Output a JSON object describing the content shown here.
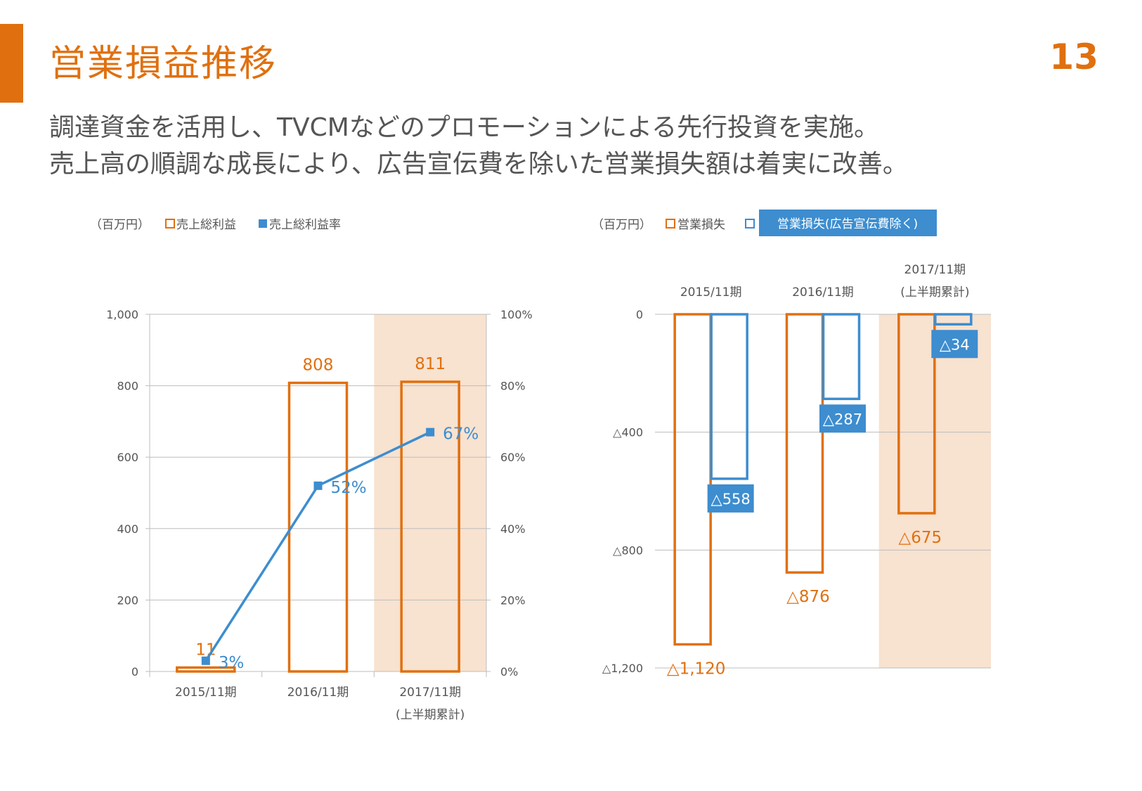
{
  "header": {
    "title": "営業損益推移",
    "page_number": "13",
    "subtitle_lines": [
      "調達資金を活用し、TVCMなどのプロモーションによる先行投資を実施。",
      "売上高の順調な成長により、広告宣伝費を除いた営業損失額は着実に改善。"
    ]
  },
  "colors": {
    "accent": "#e0700f",
    "blue": "#3d8dcf",
    "highlight": "#f8e2d0",
    "grid": "#bdbdbd",
    "text": "#555555"
  },
  "chart_data": [
    {
      "type": "bar",
      "unit_label": "（百万円）",
      "legend": [
        {
          "marker": "□",
          "label": "売上総利益"
        },
        {
          "marker": "■",
          "label": "売上総利益率"
        }
      ],
      "categories": [
        "2015/11期",
        "2016/11期",
        "2017/11期"
      ],
      "category_sublabels": [
        "",
        "",
        "(上半期累計)"
      ],
      "highlighted_category_index": 2,
      "series": [
        {
          "name": "売上総利益",
          "type": "bar",
          "axis": "left",
          "values": [
            11,
            808,
            811
          ],
          "labels": [
            "11",
            "808",
            "811"
          ]
        },
        {
          "name": "売上総利益率",
          "type": "line",
          "axis": "right",
          "values": [
            3,
            52,
            67
          ],
          "labels": [
            "3%",
            "52%",
            "67%"
          ]
        }
      ],
      "y_left": {
        "min": 0,
        "max": 1000,
        "ticks": [
          0,
          200,
          400,
          600,
          800,
          1000
        ],
        "tick_labels": [
          "0",
          "200",
          "400",
          "600",
          "800",
          "1,000"
        ]
      },
      "y_right": {
        "min": 0,
        "max": 100,
        "ticks": [
          0,
          20,
          40,
          60,
          80,
          100
        ],
        "tick_labels": [
          "0%",
          "20%",
          "40%",
          "60%",
          "80%",
          "100%"
        ]
      },
      "grid": true
    },
    {
      "type": "bar",
      "unit_label": "（百万円）",
      "legend": [
        {
          "marker": "□",
          "label": "営業損失"
        },
        {
          "marker": "□",
          "label": "営業損失(広告宣伝費除く)"
        }
      ],
      "categories": [
        "2015/11期",
        "2016/11期",
        "2017/11期"
      ],
      "category_sublabels": [
        "",
        "",
        "(上半期累計)"
      ],
      "highlighted_category_index": 2,
      "series": [
        {
          "name": "営業損失",
          "values": [
            -1120,
            -876,
            -675
          ],
          "labels": [
            "△1,120",
            "△876",
            "△675"
          ]
        },
        {
          "name": "営業損失(広告宣伝費除く)",
          "values": [
            -558,
            -287,
            -34
          ],
          "labels": [
            "△558",
            "△287",
            "△34"
          ]
        }
      ],
      "y": {
        "min": -1200,
        "max": 0,
        "ticks": [
          0,
          -400,
          -800,
          -1200
        ],
        "tick_labels": [
          "0",
          "△400",
          "△800",
          "△1,200"
        ]
      },
      "grid": true
    }
  ]
}
